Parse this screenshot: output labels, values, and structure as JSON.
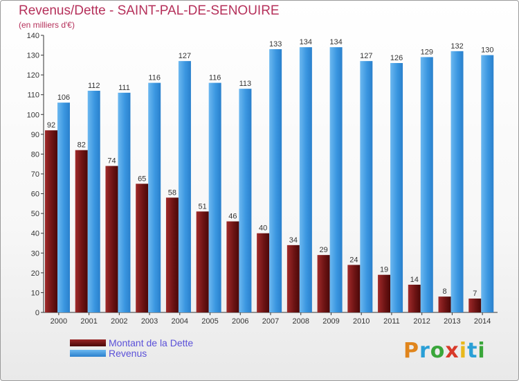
{
  "header": {
    "title": "Revenus/Dette - SAINT-PAL-DE-SENOUIRE",
    "subtitle": "(en milliers d'€)"
  },
  "legend": {
    "items": [
      {
        "label": "Montant de la Dette",
        "color": "#7a1a1a"
      },
      {
        "label": "Revenus",
        "color": "#3d9ae0"
      }
    ]
  },
  "logo": {
    "letters": [
      {
        "ch": "P",
        "color": "#e0851c"
      },
      {
        "ch": "r",
        "color": "#2a9fd6"
      },
      {
        "ch": "o",
        "color": "#3aa63a"
      },
      {
        "ch": "x",
        "color": "#d83a2a"
      },
      {
        "ch": "i",
        "color": "#e8b81c"
      },
      {
        "ch": "t",
        "color": "#2a9fd6"
      },
      {
        "ch": "i",
        "color": "#3aa63a"
      }
    ]
  },
  "chart_data": {
    "type": "bar",
    "title": "Revenus/Dette - SAINT-PAL-DE-SENOUIRE",
    "ylabel": "(en milliers d'€)",
    "ylim": [
      0,
      140
    ],
    "yticks": [
      0,
      10,
      20,
      30,
      40,
      50,
      60,
      70,
      80,
      90,
      100,
      110,
      120,
      130,
      140
    ],
    "grid": false,
    "legend_position": "bottom-left",
    "categories": [
      "2000",
      "2001",
      "2002",
      "2003",
      "2004",
      "2005",
      "2006",
      "2007",
      "2008",
      "2009",
      "2010",
      "2011",
      "2012",
      "2013",
      "2014"
    ],
    "series": [
      {
        "name": "Montant de la Dette",
        "color": "#7a1a1a",
        "values": [
          92,
          82,
          74,
          65,
          58,
          51,
          46,
          40,
          34,
          29,
          24,
          19,
          14,
          8,
          7
        ]
      },
      {
        "name": "Revenus",
        "color": "#3d9ae0",
        "values": [
          106,
          112,
          111,
          116,
          127,
          116,
          113,
          133,
          134,
          134,
          127,
          126,
          129,
          132,
          130
        ]
      }
    ]
  }
}
